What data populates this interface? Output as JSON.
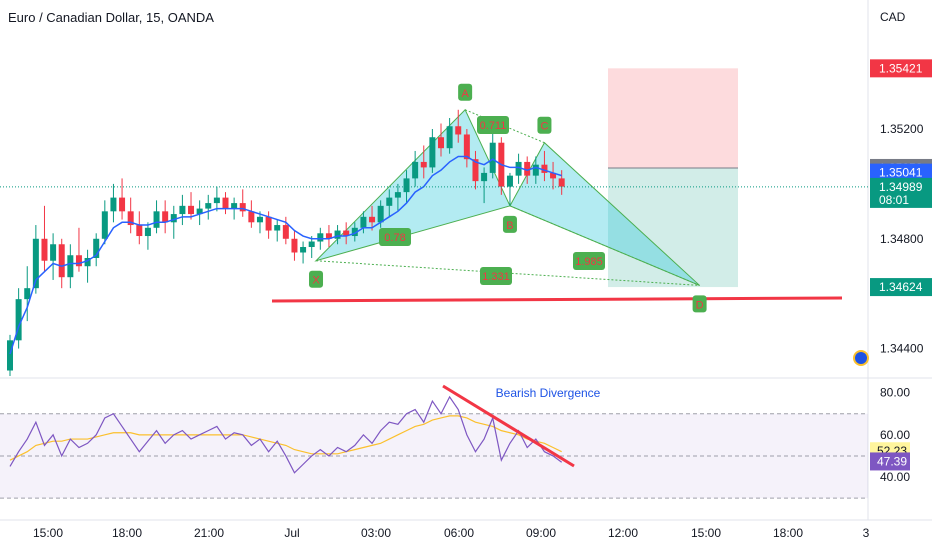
{
  "header": {
    "title": "Euro / Canadian Dollar, 15, OANDA",
    "currency": "CAD"
  },
  "price_axis": {
    "ticks": [
      "1.35200",
      "1.34800",
      "1.34400"
    ],
    "labels": [
      {
        "name": "price-label-1-35421",
        "text": "1.35421",
        "price": 1.35421,
        "color": "#f23645"
      },
      {
        "name": "price-label-1-35058",
        "text": "1.35058",
        "price": 1.35058,
        "color": "#787b86"
      },
      {
        "name": "price-label-1-35041",
        "text": "1.35041",
        "price": 1.35041,
        "color": "#2962ff"
      },
      {
        "name": "price-label-last",
        "text": "1.34989",
        "sub": "08:01",
        "price": 1.34989,
        "color": "#089981"
      },
      {
        "name": "price-label-1-34624",
        "text": "1.34624",
        "price": 1.34624,
        "color": "#089981"
      }
    ]
  },
  "rsi": {
    "ticks": [
      "80.00",
      "60.00",
      "40.00"
    ],
    "labels": [
      {
        "name": "rsi-label-ma",
        "text": "52.23",
        "value": 52.23,
        "bg": "#fff59d",
        "fg": "#131722"
      },
      {
        "name": "rsi-label-rsi",
        "text": "47.39",
        "value": 47.39,
        "bg": "#7e57c2",
        "fg": "#ffffff"
      }
    ],
    "annotation": "Bearish Divergence"
  },
  "time_axis": [
    "15:00",
    "18:00",
    "21:00",
    "Jul",
    "03:00",
    "06:00",
    "09:00",
    "12:00",
    "15:00",
    "18:00",
    "3"
  ],
  "pattern": {
    "points": [
      {
        "label": "X",
        "time": 35.5,
        "price": 1.3472
      },
      {
        "label": "A",
        "time": 52.8,
        "price": 1.3527
      },
      {
        "label": "B",
        "time": 58.0,
        "price": 1.3492
      },
      {
        "label": "C",
        "time": 62.0,
        "price": 1.3515
      },
      {
        "label": "D",
        "time": 80.0,
        "price": 1.3463
      }
    ],
    "ratios": [
      "0.78",
      "0.711",
      "1.331",
      "1.985"
    ]
  },
  "colors": {
    "up": "#089981",
    "down": "#f23645",
    "ema": "#2962ff",
    "rsi": "#7e57c2",
    "rsi_ma": "#fbc02d"
  },
  "chart_data": {
    "type": "candlestick",
    "title": "Euro / Canadian Dollar, 15, OANDA",
    "y_range": [
      1.343,
      1.3567
    ],
    "rsi_range": [
      22,
      86
    ],
    "candles": [
      [
        1.3432,
        1.3445,
        1.343,
        1.3443
      ],
      [
        1.3443,
        1.3462,
        1.344,
        1.3458
      ],
      [
        1.3458,
        1.347,
        1.345,
        1.3462
      ],
      [
        1.3462,
        1.3485,
        1.346,
        1.348
      ],
      [
        1.348,
        1.3492,
        1.3468,
        1.3472
      ],
      [
        1.3472,
        1.3482,
        1.3465,
        1.3478
      ],
      [
        1.3478,
        1.348,
        1.3462,
        1.3466
      ],
      [
        1.3466,
        1.3478,
        1.3462,
        1.3474
      ],
      [
        1.3474,
        1.3484,
        1.3468,
        1.347
      ],
      [
        1.347,
        1.3476,
        1.3464,
        1.3473
      ],
      [
        1.3473,
        1.3482,
        1.347,
        1.348
      ],
      [
        1.348,
        1.3494,
        1.3478,
        1.349
      ],
      [
        1.349,
        1.35,
        1.3486,
        1.3495
      ],
      [
        1.3495,
        1.3502,
        1.3487,
        1.349
      ],
      [
        1.349,
        1.3495,
        1.3482,
        1.3485
      ],
      [
        1.3485,
        1.349,
        1.3478,
        1.3481
      ],
      [
        1.3481,
        1.3486,
        1.3476,
        1.3484
      ],
      [
        1.3484,
        1.3494,
        1.3482,
        1.349
      ],
      [
        1.349,
        1.3494,
        1.3482,
        1.3486
      ],
      [
        1.3486,
        1.3492,
        1.348,
        1.3489
      ],
      [
        1.3489,
        1.3496,
        1.3485,
        1.3492
      ],
      [
        1.3492,
        1.3497,
        1.3487,
        1.3489
      ],
      [
        1.3489,
        1.3494,
        1.3485,
        1.3491
      ],
      [
        1.3491,
        1.3496,
        1.3487,
        1.3493
      ],
      [
        1.3493,
        1.3499,
        1.349,
        1.3495
      ],
      [
        1.3495,
        1.3497,
        1.3489,
        1.3491
      ],
      [
        1.3491,
        1.3495,
        1.3487,
        1.3493
      ],
      [
        1.3493,
        1.3498,
        1.3488,
        1.349
      ],
      [
        1.349,
        1.3494,
        1.3484,
        1.3486
      ],
      [
        1.3486,
        1.349,
        1.3482,
        1.3488
      ],
      [
        1.3488,
        1.349,
        1.348,
        1.3483
      ],
      [
        1.3483,
        1.3487,
        1.3479,
        1.3485
      ],
      [
        1.3485,
        1.3488,
        1.3478,
        1.348
      ],
      [
        1.348,
        1.3483,
        1.3472,
        1.3475
      ],
      [
        1.3475,
        1.3479,
        1.3471,
        1.3477
      ],
      [
        1.3477,
        1.3481,
        1.3473,
        1.3479
      ],
      [
        1.3479,
        1.3484,
        1.3476,
        1.3482
      ],
      [
        1.3482,
        1.3485,
        1.3477,
        1.348
      ],
      [
        1.348,
        1.3485,
        1.3478,
        1.3483
      ],
      [
        1.3483,
        1.3486,
        1.3478,
        1.3481
      ],
      [
        1.3481,
        1.3486,
        1.3479,
        1.3484
      ],
      [
        1.3484,
        1.349,
        1.3482,
        1.3488
      ],
      [
        1.3488,
        1.3492,
        1.3483,
        1.3486
      ],
      [
        1.3486,
        1.3494,
        1.3484,
        1.3492
      ],
      [
        1.3492,
        1.3498,
        1.3488,
        1.3495
      ],
      [
        1.3495,
        1.35,
        1.349,
        1.3497
      ],
      [
        1.3497,
        1.3505,
        1.3493,
        1.3502
      ],
      [
        1.3502,
        1.3512,
        1.3499,
        1.3508
      ],
      [
        1.3508,
        1.3514,
        1.3502,
        1.3506
      ],
      [
        1.3506,
        1.352,
        1.3504,
        1.3517
      ],
      [
        1.3517,
        1.3522,
        1.351,
        1.3513
      ],
      [
        1.3513,
        1.3524,
        1.3511,
        1.3521
      ],
      [
        1.3521,
        1.3527,
        1.3515,
        1.3518
      ],
      [
        1.3518,
        1.352,
        1.3506,
        1.3509
      ],
      [
        1.3509,
        1.3512,
        1.3498,
        1.3501
      ],
      [
        1.3501,
        1.3506,
        1.3493,
        1.3504
      ],
      [
        1.3504,
        1.3519,
        1.3502,
        1.3515
      ],
      [
        1.3515,
        1.3517,
        1.3496,
        1.3499
      ],
      [
        1.3499,
        1.3504,
        1.3492,
        1.3503
      ],
      [
        1.3503,
        1.3511,
        1.35,
        1.3508
      ],
      [
        1.3508,
        1.351,
        1.35,
        1.3503
      ],
      [
        1.3503,
        1.351,
        1.35,
        1.3507
      ],
      [
        1.3507,
        1.3512,
        1.3501,
        1.3504
      ],
      [
        1.3504,
        1.3508,
        1.3498,
        1.3502
      ],
      [
        1.3502,
        1.3505,
        1.3496,
        1.3499
      ]
    ],
    "ema": [
      1.3438,
      1.3448,
      1.3455,
      1.3465,
      1.3468,
      1.3471,
      1.347,
      1.3471,
      1.3471,
      1.3472,
      1.3474,
      1.3479,
      1.3484,
      1.3486,
      1.3486,
      1.3485,
      1.3485,
      1.3486,
      1.3486,
      1.3487,
      1.3488,
      1.3488,
      1.3489,
      1.349,
      1.3491,
      1.3491,
      1.3491,
      1.3491,
      1.349,
      1.3489,
      1.3488,
      1.3487,
      1.3486,
      1.3483,
      1.3481,
      1.348,
      1.348,
      1.348,
      1.3481,
      1.3481,
      1.3482,
      1.3484,
      1.3484,
      1.3486,
      1.3488,
      1.349,
      1.3493,
      1.3497,
      1.3499,
      1.3503,
      1.3505,
      1.3508,
      1.351,
      1.351,
      1.3508,
      1.3507,
      1.3509,
      1.3507,
      1.3506,
      1.3506,
      1.3505,
      1.3506,
      1.3505,
      1.3504,
      1.3503
    ],
    "rsi": [
      45,
      52,
      58,
      66,
      55,
      60,
      50,
      58,
      54,
      56,
      60,
      68,
      70,
      64,
      58,
      52,
      57,
      62,
      56,
      60,
      62,
      58,
      60,
      62,
      64,
      58,
      61,
      60,
      55,
      58,
      52,
      57,
      50,
      42,
      46,
      50,
      53,
      50,
      54,
      52,
      55,
      60,
      56,
      62,
      66,
      65,
      70,
      72,
      66,
      76,
      70,
      78,
      72,
      60,
      52,
      58,
      68,
      48,
      56,
      62,
      54,
      58,
      52,
      50,
      47
    ],
    "rsi_ma": [
      48,
      50,
      52,
      55,
      56,
      57,
      57,
      58,
      58,
      58,
      59,
      60,
      61,
      61,
      61,
      60,
      60,
      60,
      60,
      60,
      60,
      60,
      60,
      60,
      60,
      60,
      60,
      60,
      59,
      58,
      57,
      56,
      55,
      53,
      52,
      51,
      51,
      51,
      51,
      52,
      53,
      54,
      55,
      56,
      58,
      60,
      62,
      64,
      65,
      67,
      68,
      69,
      69,
      68,
      66,
      65,
      64,
      62,
      61,
      60,
      58,
      57,
      56,
      54,
      52
    ]
  }
}
